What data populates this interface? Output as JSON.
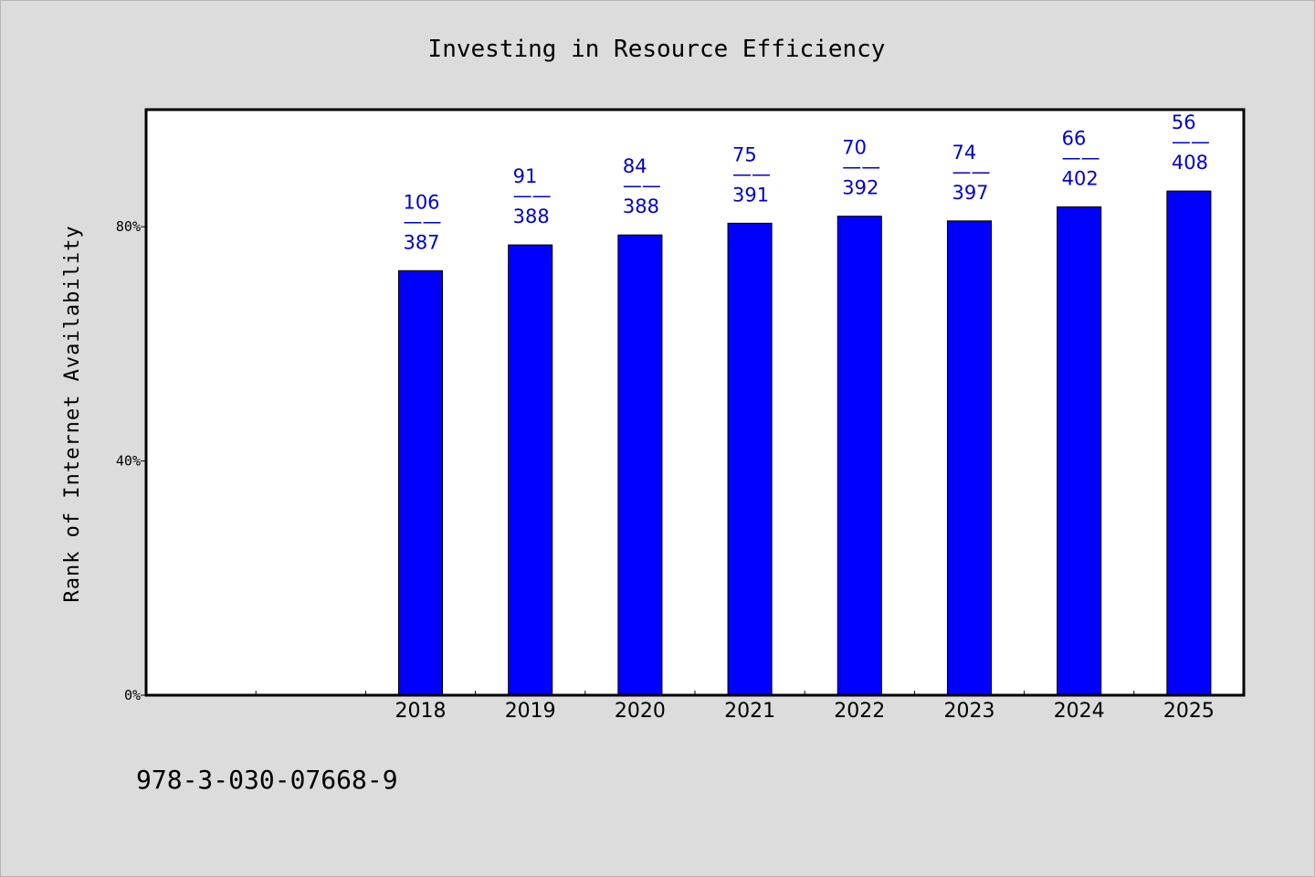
{
  "chart_data": {
    "type": "bar",
    "title": "Investing in Resource Efficiency",
    "xlabel": "",
    "ylabel": "Rank of Internet Availability",
    "categories": [
      "",
      "",
      "2018",
      "2019",
      "2020",
      "2021",
      "2022",
      "2023",
      "2024",
      "2025"
    ],
    "values": [
      null,
      null,
      72.5,
      76.9,
      78.6,
      80.6,
      81.8,
      81.0,
      83.4,
      86.1
    ],
    "ratio_labels": [
      null,
      null,
      {
        "top": "106",
        "bottom": "387"
      },
      {
        "top": "91",
        "bottom": "388"
      },
      {
        "top": "84",
        "bottom": "388"
      },
      {
        "top": "75",
        "bottom": "391"
      },
      {
        "top": "70",
        "bottom": "392"
      },
      {
        "top": "74",
        "bottom": "397"
      },
      {
        "top": "66",
        "bottom": "402"
      },
      {
        "top": "56",
        "bottom": "408"
      }
    ],
    "label_separator": "——",
    "yticks": [
      {
        "value": 0,
        "label": "0%"
      },
      {
        "value": 40,
        "label": "40%"
      },
      {
        "value": 80,
        "label": "80%"
      }
    ],
    "ylim": [
      0,
      100
    ],
    "grid": false,
    "bar_color": "#0000ff",
    "label_color": "#0000cc"
  },
  "footer": {
    "isbn": "978-3-030-07668-9"
  }
}
